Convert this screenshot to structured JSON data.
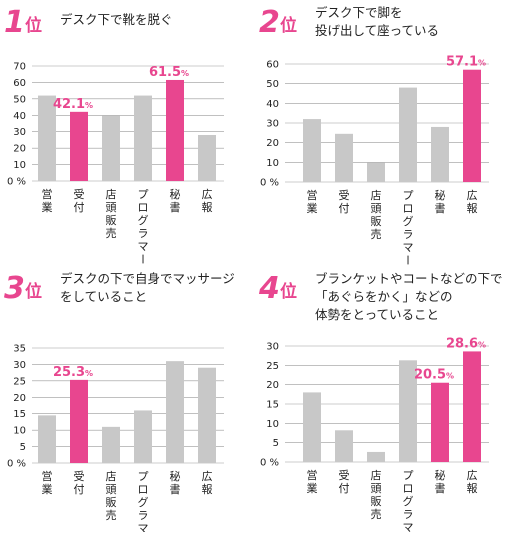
{
  "panels": [
    {
      "rank": "1",
      "rank_suffix": "位",
      "title_lines": [
        "デスク下で靴を脱ぐ"
      ],
      "highlight_color": "#e8468f",
      "base_color": "#c8c8c8"
    },
    {
      "rank": "2",
      "rank_suffix": "位",
      "title_lines": [
        "デスク下で脚を",
        "投げ出して座っている"
      ],
      "highlight_color": "#e8468f",
      "base_color": "#c8c8c8"
    },
    {
      "rank": "3",
      "rank_suffix": "位",
      "title_lines": [
        "デスクの下で自身でマッサージ",
        "をしていること"
      ],
      "highlight_color": "#e8468f",
      "base_color": "#c8c8c8"
    },
    {
      "rank": "4",
      "rank_suffix": "位",
      "title_lines": [
        "ブランケットやコートなどの下で",
        "「あぐらをかく」などの",
        "体勢をとっていること"
      ],
      "highlight_color": "#e8468f",
      "base_color": "#c8c8c8"
    }
  ],
  "chart_data": [
    {
      "type": "bar",
      "categories": [
        "営業",
        "受付",
        "店頭販売",
        "プログラマー",
        "秘書",
        "広報"
      ],
      "values": [
        52,
        42.1,
        40,
        52,
        61.5,
        28
      ],
      "highlighted": [
        1,
        4
      ],
      "data_labels": [
        {
          "index": 1,
          "value": "42.1",
          "unit": "%"
        },
        {
          "index": 4,
          "value": "61.5",
          "unit": "%"
        }
      ],
      "yticks": [
        "0",
        "10",
        "20",
        "30",
        "40",
        "50",
        "60",
        "70"
      ],
      "y_unit": "%",
      "ylim": [
        0,
        70
      ],
      "title": "デスク下で靴を脱ぐ"
    },
    {
      "type": "bar",
      "categories": [
        "営業",
        "受付",
        "店頭販売",
        "プログラマー",
        "秘書",
        "広報"
      ],
      "values": [
        32,
        24.5,
        10,
        48,
        28,
        57.1
      ],
      "highlighted": [
        5
      ],
      "data_labels": [
        {
          "index": 5,
          "value": "57.1",
          "unit": "%"
        }
      ],
      "yticks": [
        "0",
        "10",
        "20",
        "30",
        "40",
        "50",
        "60"
      ],
      "y_unit": "%",
      "ylim": [
        0,
        60
      ],
      "title": "デスク下で脚を投げ出して座っている"
    },
    {
      "type": "bar",
      "categories": [
        "営業",
        "受付",
        "店頭販売",
        "プログラマー",
        "秘書",
        "広報"
      ],
      "values": [
        14.5,
        25.3,
        11,
        16,
        31,
        29
      ],
      "highlighted": [
        1
      ],
      "data_labels": [
        {
          "index": 1,
          "value": "25.3",
          "unit": "%"
        }
      ],
      "yticks": [
        "0",
        "5",
        "10",
        "15",
        "20",
        "25",
        "30",
        "35"
      ],
      "y_unit": "%",
      "ylim": [
        0,
        35
      ],
      "title": "デスクの下で自身でマッサージをしていること"
    },
    {
      "type": "bar",
      "categories": [
        "営業",
        "受付",
        "店頭販売",
        "プログラマー",
        "秘書",
        "広報"
      ],
      "values": [
        18,
        8.2,
        2.6,
        26.3,
        20.5,
        28.6
      ],
      "highlighted": [
        4,
        5
      ],
      "data_labels": [
        {
          "index": 4,
          "value": "20.5",
          "unit": "%"
        },
        {
          "index": 5,
          "value": "28.6",
          "unit": "%"
        }
      ],
      "yticks": [
        "0",
        "5",
        "10",
        "15",
        "20",
        "25",
        "30"
      ],
      "y_unit": "%",
      "ylim": [
        0,
        30
      ],
      "title": "ブランケットやコートなどの下で「あぐらをかく」などの体勢をとっていること"
    }
  ]
}
